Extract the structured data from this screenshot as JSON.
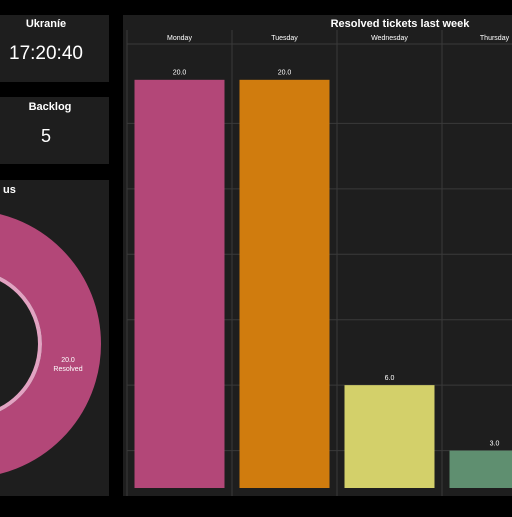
{
  "clock": {
    "title": "Ukraníe",
    "time": "17:20:40"
  },
  "backlog": {
    "title": "Backlog",
    "value": "5"
  },
  "chart_data": [
    {
      "type": "bar",
      "title": "Resolved tickets last week",
      "categories": [
        "Monday",
        "Tuesday",
        "Wednesday",
        "Thursday"
      ],
      "values": [
        20,
        20,
        6,
        3
      ],
      "value_labels": [
        "20.0",
        "20.0",
        "6.0",
        "3.0"
      ],
      "colors": [
        "#b34778",
        "#d07c0e",
        "#d3d06a",
        "#5f8f70"
      ],
      "ylim": [
        0,
        21
      ],
      "yticks": [
        3,
        6,
        9,
        12,
        15,
        18
      ],
      "grid": true
    },
    {
      "type": "pie",
      "title": "us",
      "categories": [
        "Resolved"
      ],
      "values": [
        20
      ],
      "value_labels": [
        "20.0"
      ],
      "colors": [
        "#b34778"
      ]
    }
  ]
}
